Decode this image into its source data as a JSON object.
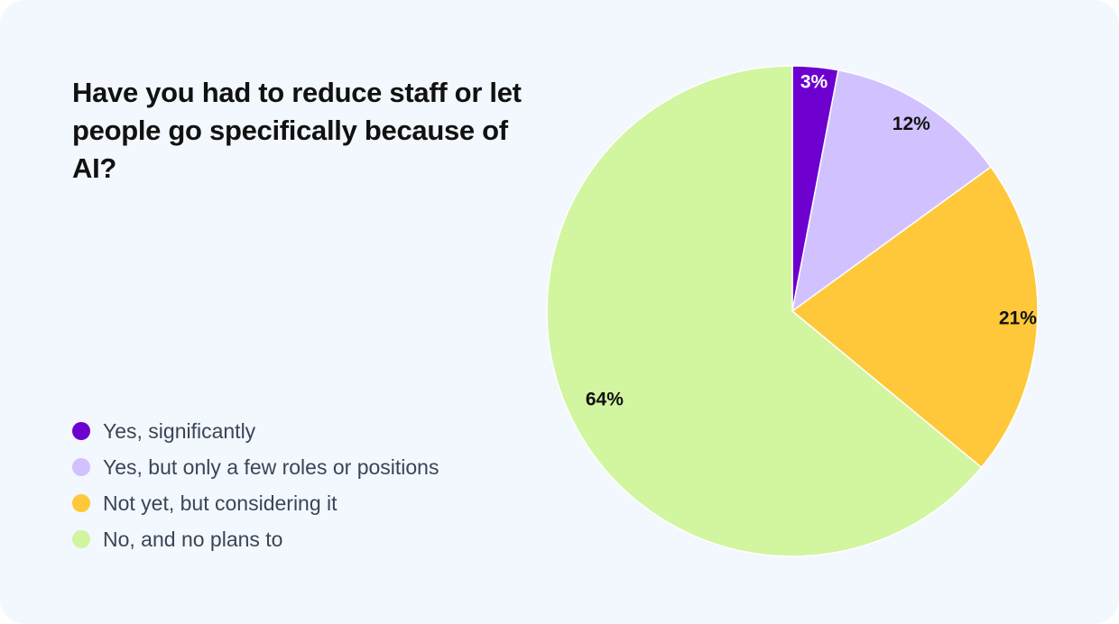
{
  "title": "Have you had to reduce staff or let people go specifically because of AI?",
  "legend": [
    {
      "label": "Yes, significantly",
      "color": "#6d00cf"
    },
    {
      "label": "Yes, but only a few roles or positions",
      "color": "#d1c2ff"
    },
    {
      "label": "Not yet, but considering it",
      "color": "#ffc83a"
    },
    {
      "label": "No, and no plans to",
      "color": "#d2f5a0"
    }
  ],
  "chart_data": {
    "type": "pie",
    "title": "Have you had to reduce staff or let people go specifically because of AI?",
    "categories": [
      "Yes, significantly",
      "Yes, but only a few roles or positions",
      "Not yet, but considering it",
      "No, and no plans to"
    ],
    "values": [
      3,
      12,
      21,
      64
    ],
    "labels": [
      "3%",
      "12%",
      "21%",
      "64%"
    ],
    "label_colors": [
      "#ffffff",
      "#111111",
      "#111111",
      "#111111"
    ],
    "colors": [
      "#6d00cf",
      "#d1c2ff",
      "#ffc83a",
      "#d2f5a0"
    ],
    "start": "top, clockwise",
    "legend_position": "bottom-left"
  }
}
